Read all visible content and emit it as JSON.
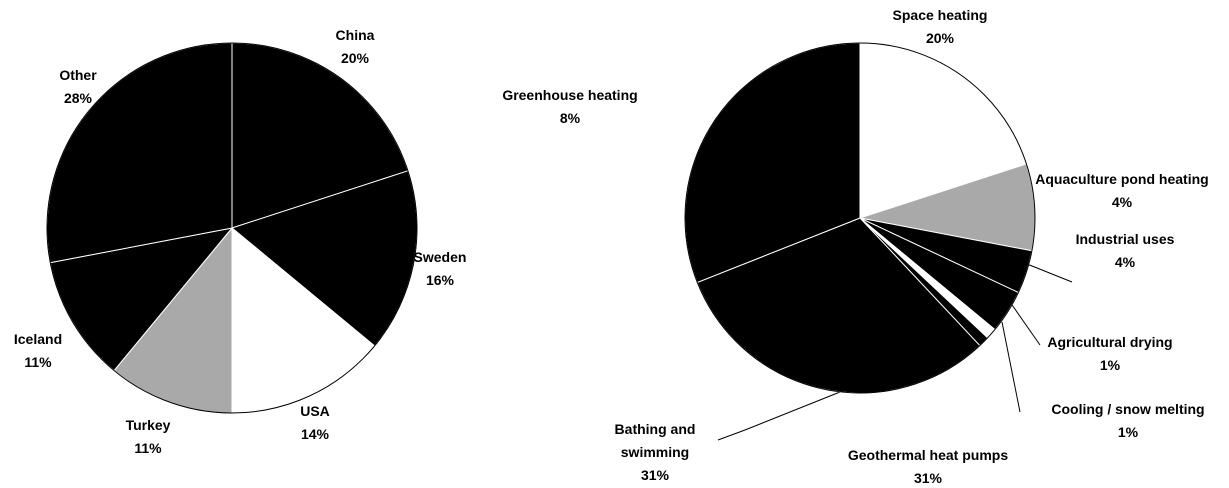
{
  "chart_data": [
    {
      "type": "pie",
      "categories": [
        "China",
        "Sweden",
        "USA",
        "Turkey",
        "Iceland",
        "Other"
      ],
      "values": [
        20,
        16,
        14,
        11,
        11,
        28
      ],
      "value_labels": [
        "20%",
        "16%",
        "14%",
        "11%",
        "11%",
        "28%"
      ],
      "colors": [
        "#000000",
        "#000000",
        "#ffffff",
        "#a9a9a9",
        "#000000",
        "#000000"
      ]
    },
    {
      "type": "pie",
      "categories": [
        "Space heating",
        "Greenhouse heating",
        "Aquaculture pond heating",
        "Industrial uses",
        "Agricultural drying",
        "Cooling / snow melting",
        "Geothermal heat pumps",
        "Bathing and swimming"
      ],
      "values": [
        20,
        8,
        4,
        4,
        1,
        1,
        31,
        31
      ],
      "value_labels": [
        "20%",
        "8%",
        "4%",
        "4%",
        "1%",
        "1%",
        "31%",
        "31%"
      ],
      "colors": [
        "#ffffff",
        "#a9a9a9",
        "#000000",
        "#000000",
        "#ffffff",
        "#000000",
        "#000000",
        "#000000"
      ]
    }
  ]
}
